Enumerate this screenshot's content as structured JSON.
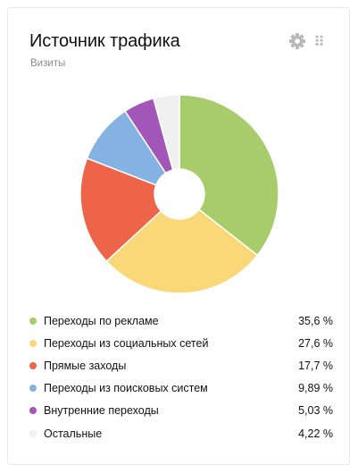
{
  "widget": {
    "title": "Источник трафика",
    "subtitle": "Визиты",
    "settings_icon": "gear-icon",
    "drag_icon": "drag-handle-icon"
  },
  "chart_data": {
    "type": "pie",
    "style": "donut",
    "series": [
      {
        "name": "Переходы по рекламе",
        "value": 35.6,
        "label": "35,6 %",
        "color": "#a6cc6c"
      },
      {
        "name": "Переходы из социальных сетей",
        "value": 27.6,
        "label": "27,6 %",
        "color": "#fad877"
      },
      {
        "name": "Прямые заходы",
        "value": 17.7,
        "label": "17,7 %",
        "color": "#ee6448"
      },
      {
        "name": "Переходы из поисковых систем",
        "value": 9.89,
        "label": "9,89 %",
        "color": "#84b3e3"
      },
      {
        "name": "Внутренние переходы",
        "value": 5.03,
        "label": "5,03 %",
        "color": "#a256b8"
      },
      {
        "name": "Остальные",
        "value": 4.22,
        "label": "4,22 %",
        "color": "#f0f0f0"
      }
    ]
  }
}
